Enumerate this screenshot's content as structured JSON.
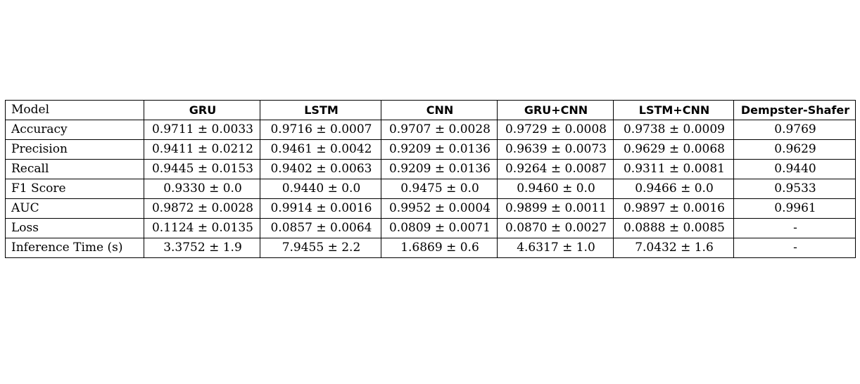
{
  "table": {
    "headers": [
      "Model",
      "GRU",
      "LSTM",
      "CNN",
      "GRU+CNN",
      "LSTM+CNN",
      "Dempster-Shafer"
    ],
    "rows": [
      {
        "label": "Accuracy",
        "cells": [
          "0.9711 ± 0.0033",
          "0.9716 ± 0.0007",
          "0.9707 ± 0.0028",
          "0.9729 ± 0.0008",
          "0.9738 ± 0.0009",
          "0.9769"
        ]
      },
      {
        "label": "Precision",
        "cells": [
          "0.9411 ± 0.0212",
          "0.9461 ± 0.0042",
          "0.9209 ± 0.0136",
          "0.9639 ± 0.0073",
          "0.9629 ± 0.0068",
          "0.9629"
        ]
      },
      {
        "label": "Recall",
        "cells": [
          "0.9445 ± 0.0153",
          "0.9402 ± 0.0063",
          "0.9209 ± 0.0136",
          "0.9264 ± 0.0087",
          "0.9311 ± 0.0081",
          "0.9440"
        ]
      },
      {
        "label": "F1 Score",
        "cells": [
          "0.9330 ± 0.0",
          "0.9440 ± 0.0",
          "0.9475 ± 0.0",
          "0.9460 ± 0.0",
          "0.9466 ± 0.0",
          "0.9533"
        ]
      },
      {
        "label": "AUC",
        "cells": [
          "0.9872 ± 0.0028",
          "0.9914 ± 0.0016",
          "0.9952 ± 0.0004",
          "0.9899 ± 0.0011",
          "0.9897 ± 0.0016",
          "0.9961"
        ]
      },
      {
        "label": "Loss",
        "cells": [
          "0.1124 ± 0.0135",
          "0.0857 ± 0.0064",
          "0.0809 ± 0.0071",
          "0.0870 ± 0.0027",
          "0.0888 ± 0.0085",
          "-"
        ]
      },
      {
        "label": "Inference Time (s)",
        "cells": [
          "3.3752 ± 1.9",
          "7.9455 ± 2.2",
          "1.6869 ± 0.6",
          "4.6317 ± 1.0",
          "7.0432 ± 1.6",
          "-"
        ]
      }
    ]
  }
}
